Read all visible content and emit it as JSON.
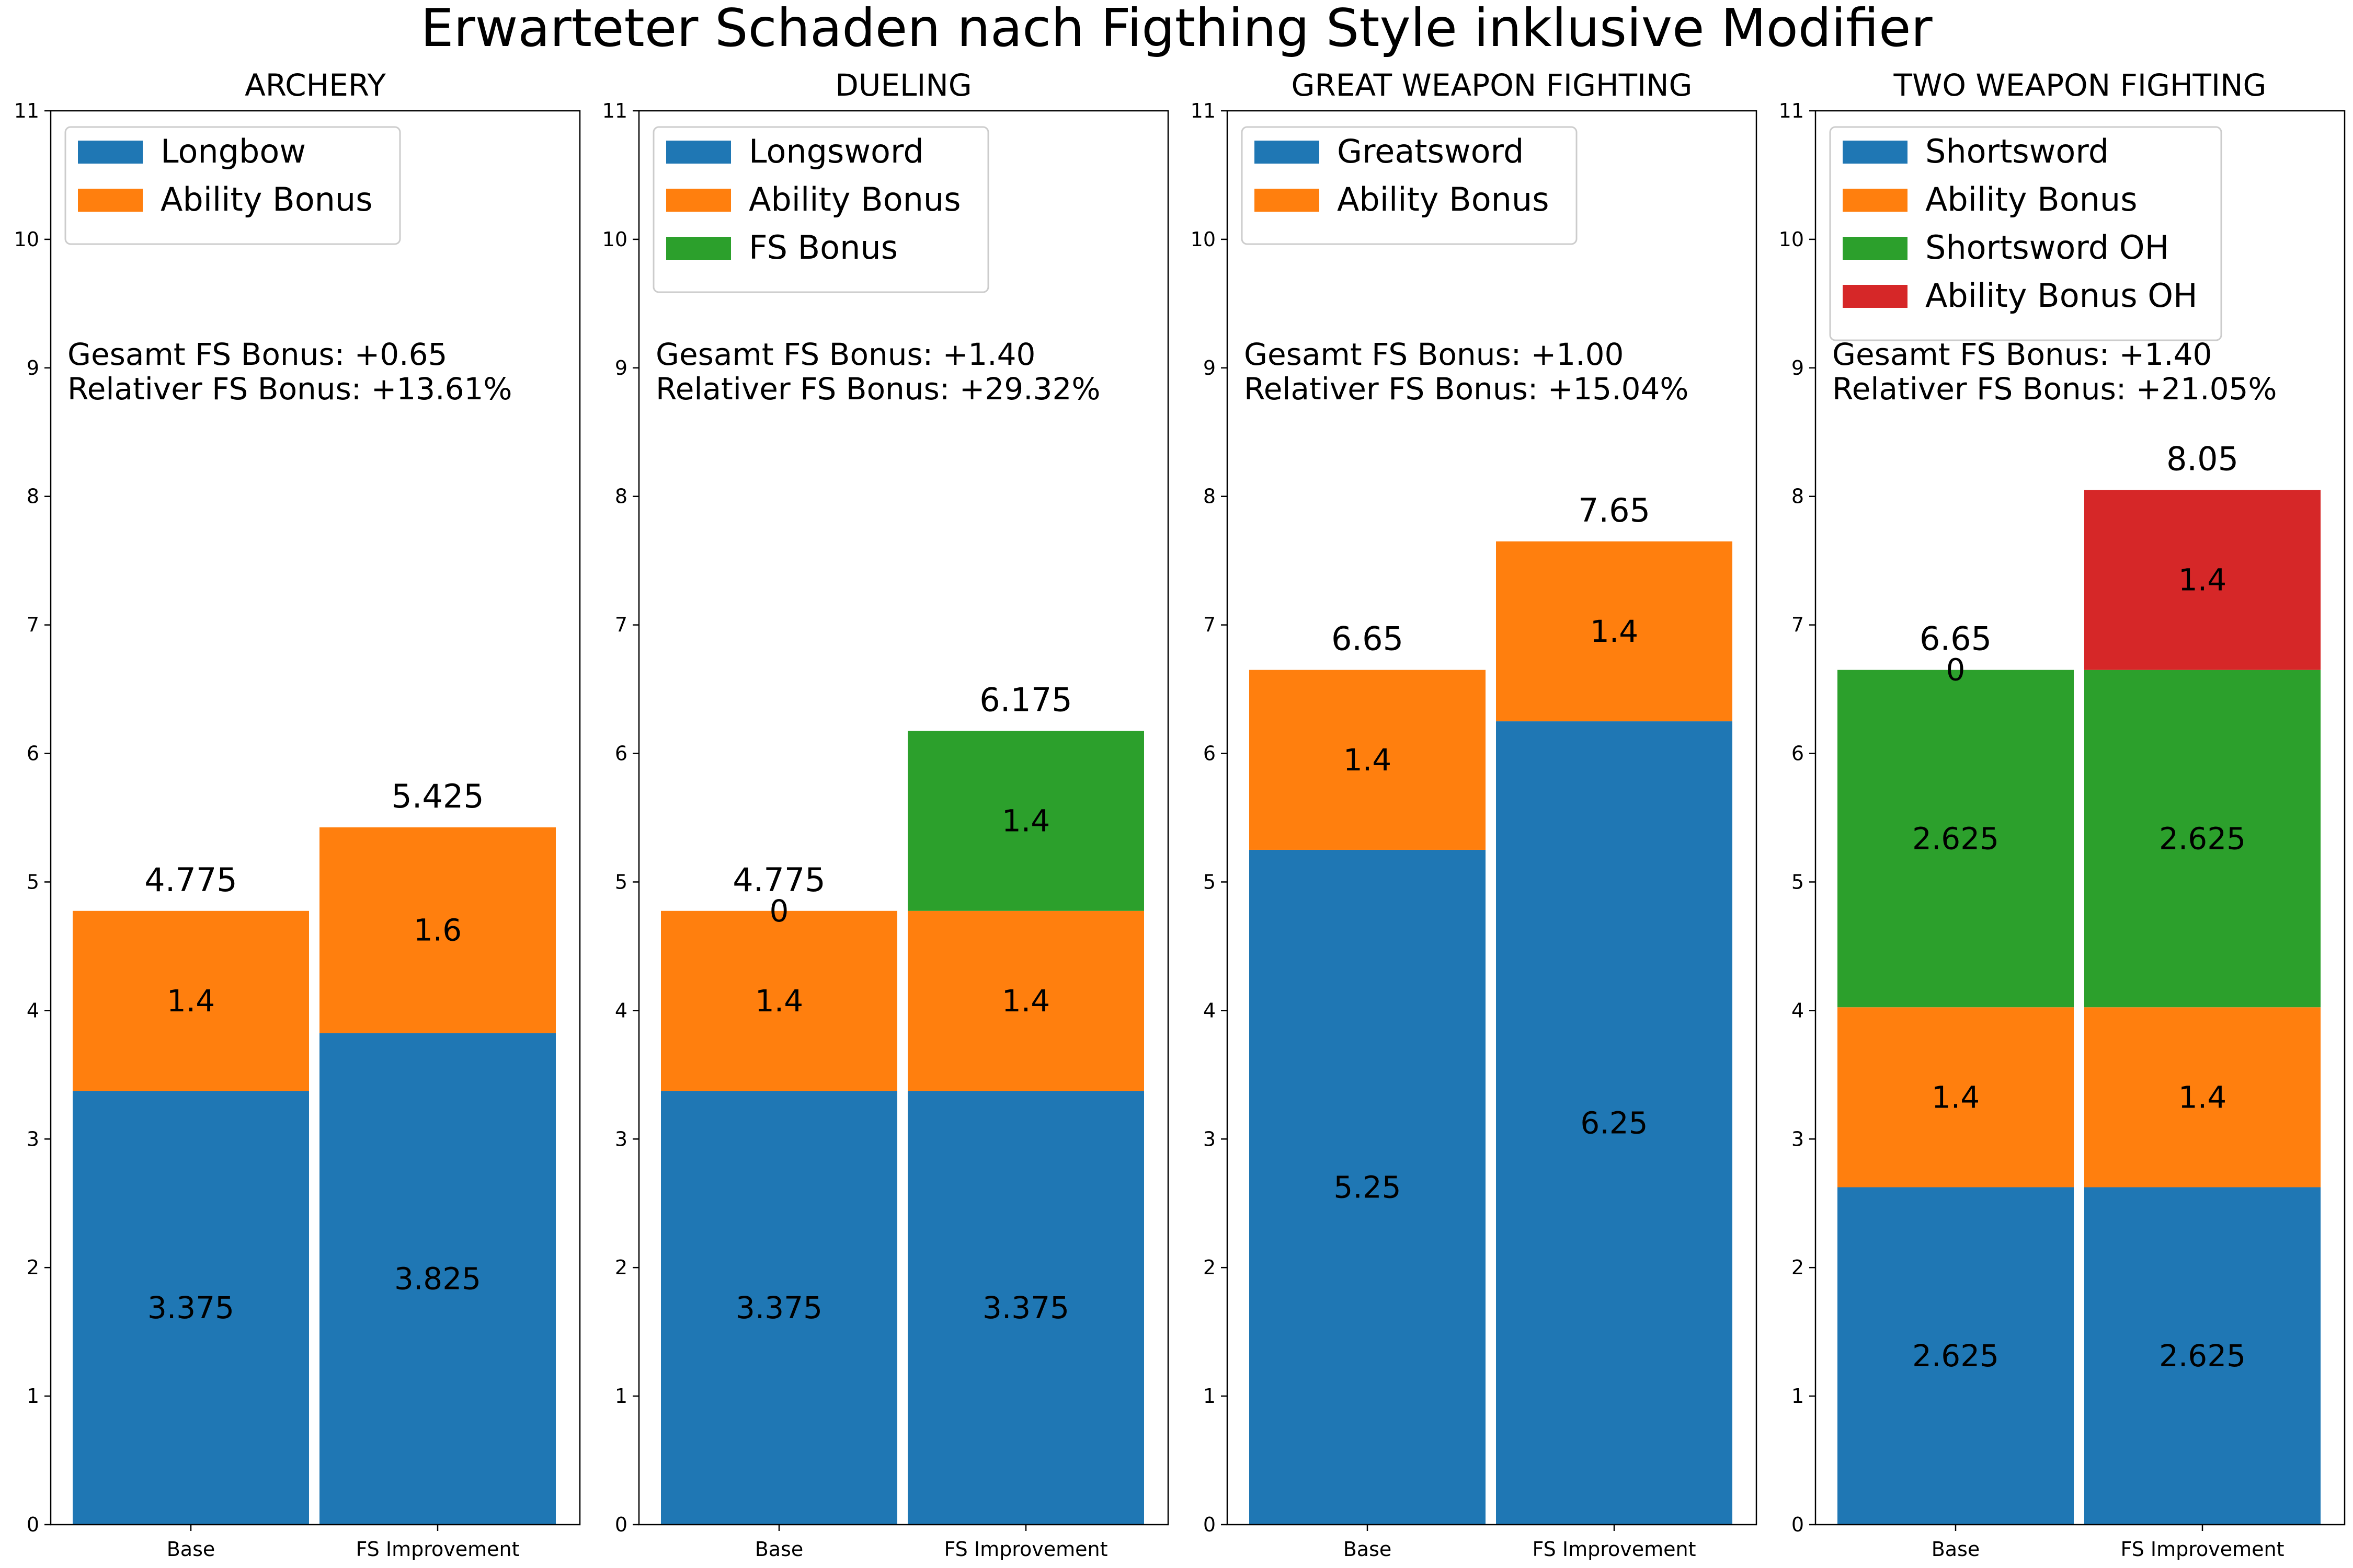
{
  "title": "Erwarteter Schaden nach Figthing Style inklusive Modifier",
  "colors": {
    "blue": "#1f77b4",
    "orange": "#ff7f0e",
    "green": "#2ca02c",
    "red": "#d62728"
  },
  "chart_data": [
    {
      "type": "bar",
      "stacked": true,
      "title": "ARCHERY",
      "categories": [
        "Base",
        "FS Improvement"
      ],
      "ylim": [
        0,
        11
      ],
      "yticks": [
        0,
        1,
        2,
        3,
        4,
        5,
        6,
        7,
        8,
        9,
        10,
        11
      ],
      "legend": "upper-left",
      "series": [
        {
          "name": "Longbow",
          "color": "blue",
          "values": [
            3.375,
            3.825
          ],
          "labels": [
            "3.375",
            "3.825"
          ]
        },
        {
          "name": "Ability Bonus",
          "color": "orange",
          "values": [
            1.4,
            1.6
          ],
          "labels": [
            "1.4",
            "1.6"
          ]
        }
      ],
      "totals": [
        "4.775",
        "5.425"
      ],
      "totals_values": [
        4.775,
        5.425
      ],
      "extra_labels": [],
      "annotation": [
        "Gesamt FS Bonus: +0.65",
        "Relativer FS Bonus: +13.61%"
      ]
    },
    {
      "type": "bar",
      "stacked": true,
      "title": "DUELING",
      "categories": [
        "Base",
        "FS Improvement"
      ],
      "ylim": [
        0,
        11
      ],
      "yticks": [
        0,
        1,
        2,
        3,
        4,
        5,
        6,
        7,
        8,
        9,
        10,
        11
      ],
      "legend": "upper-left",
      "series": [
        {
          "name": "Longsword",
          "color": "blue",
          "values": [
            3.375,
            3.375
          ],
          "labels": [
            "3.375",
            "3.375"
          ]
        },
        {
          "name": "Ability Bonus",
          "color": "orange",
          "values": [
            1.4,
            1.4
          ],
          "labels": [
            "1.4",
            "1.4"
          ]
        },
        {
          "name": "FS Bonus",
          "color": "green",
          "values": [
            0,
            1.4
          ],
          "labels": [
            "0",
            "1.4"
          ]
        }
      ],
      "totals": [
        "4.775",
        "6.175"
      ],
      "totals_values": [
        4.775,
        6.175
      ],
      "extra_labels": [],
      "annotation": [
        "Gesamt FS Bonus: +1.40",
        "Relativer FS Bonus: +29.32%"
      ]
    },
    {
      "type": "bar",
      "stacked": true,
      "title": "GREAT WEAPON FIGHTING",
      "categories": [
        "Base",
        "FS Improvement"
      ],
      "ylim": [
        0,
        11
      ],
      "yticks": [
        0,
        1,
        2,
        3,
        4,
        5,
        6,
        7,
        8,
        9,
        10,
        11
      ],
      "legend": "upper-left",
      "series": [
        {
          "name": "Greatsword",
          "color": "blue",
          "values": [
            5.25,
            6.25
          ],
          "labels": [
            "5.25",
            "6.25"
          ]
        },
        {
          "name": "Ability Bonus",
          "color": "orange",
          "values": [
            1.4,
            1.4
          ],
          "labels": [
            "1.4",
            "1.4"
          ]
        }
      ],
      "totals": [
        "6.65",
        "7.65"
      ],
      "totals_values": [
        6.65,
        7.65
      ],
      "extra_labels": [],
      "annotation": [
        "Gesamt FS Bonus: +1.00",
        "Relativer FS Bonus: +15.04%"
      ]
    },
    {
      "type": "bar",
      "stacked": true,
      "title": "TWO WEAPON FIGHTING",
      "categories": [
        "Base",
        "FS Improvement"
      ],
      "ylim": [
        0,
        11
      ],
      "yticks": [
        0,
        1,
        2,
        3,
        4,
        5,
        6,
        7,
        8,
        9,
        10,
        11
      ],
      "legend": "upper-left",
      "series": [
        {
          "name": "Shortsword",
          "color": "blue",
          "values": [
            2.625,
            2.625
          ],
          "labels": [
            "2.625",
            "2.625"
          ]
        },
        {
          "name": "Ability Bonus",
          "color": "orange",
          "values": [
            1.4,
            1.4
          ],
          "labels": [
            "1.4",
            "1.4"
          ]
        },
        {
          "name": "Shortsword OH",
          "color": "green",
          "values": [
            2.625,
            2.625
          ],
          "labels": [
            "2.625",
            "2.625"
          ]
        },
        {
          "name": "Ability Bonus OH",
          "color": "red",
          "values": [
            0,
            1.4
          ],
          "labels": [
            "0",
            "1.4"
          ]
        }
      ],
      "totals": [
        "6.65",
        "8.05"
      ],
      "totals_values": [
        6.65,
        8.05
      ],
      "extra_labels": [],
      "annotation": [
        "Gesamt FS Bonus: +1.40",
        "Relativer FS Bonus: +21.05%"
      ]
    }
  ]
}
